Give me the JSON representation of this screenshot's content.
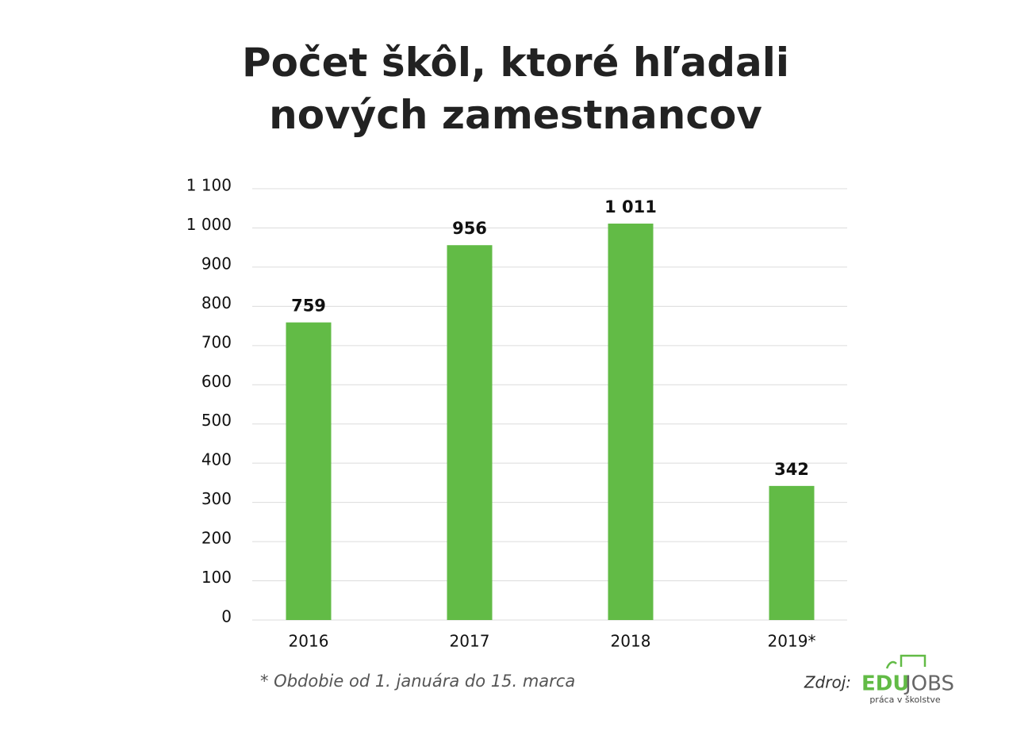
{
  "chart_data": {
    "type": "bar",
    "title": "Počet škôl, ktoré hľadali nových zamestnancov",
    "categories": [
      "2016",
      "2017",
      "2018",
      "2019*"
    ],
    "values": [
      759,
      956,
      1011,
      342
    ],
    "value_labels": [
      "759",
      "956",
      "1 011",
      "342"
    ],
    "color": "#62bb46",
    "ylim": [
      0,
      1100
    ],
    "yticks": [
      0,
      100,
      200,
      300,
      400,
      500,
      600,
      700,
      800,
      900,
      {
        "value": 1000,
        "label": "1 000"
      },
      {
        "value": 1100,
        "label": "1 100"
      }
    ],
    "grid": true,
    "footnote": "* Obdobie od 1. januára do 15. marca",
    "source": {
      "label": "Zdroj:",
      "logo_edu": "EDU",
      "logo_jobs": "JOBS",
      "logo_tagline": "práca v školstve"
    }
  }
}
